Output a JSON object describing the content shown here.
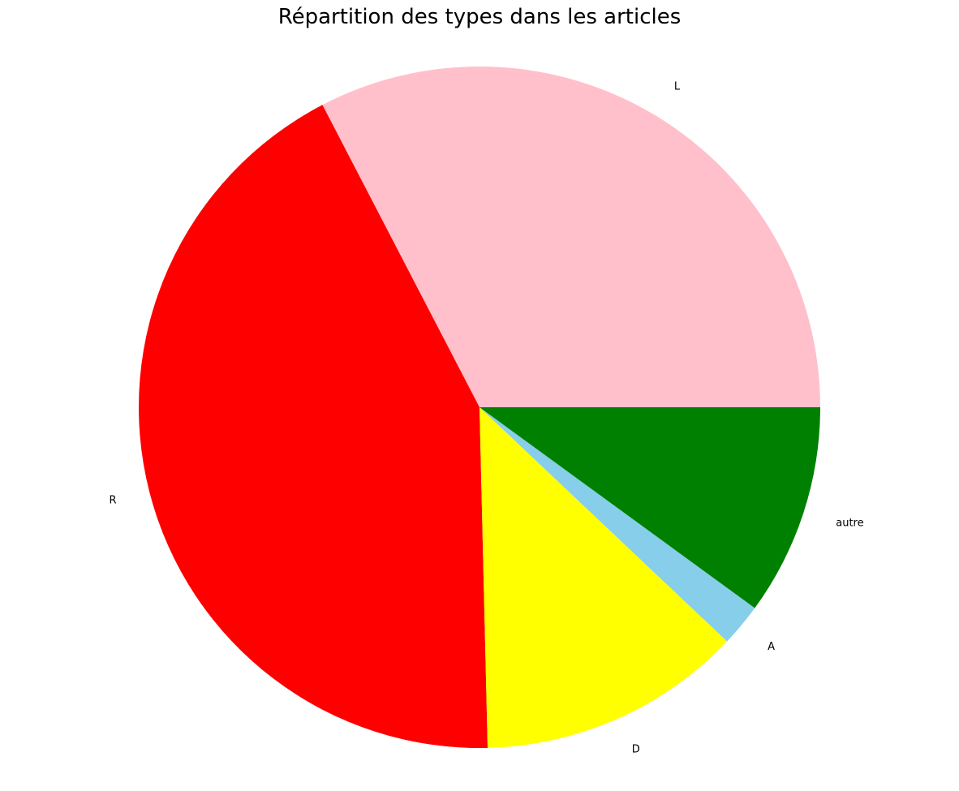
{
  "chart_data": {
    "type": "pie",
    "title": "Répartition des types dans les articles",
    "slices": [
      {
        "label": "L",
        "value": 32.2,
        "color": "#ffc0cb"
      },
      {
        "label": "R",
        "value": 42.2,
        "color": "#ff0000"
      },
      {
        "label": "D",
        "value": 12.4,
        "color": "#ffff00"
      },
      {
        "label": "A",
        "value": 2.0,
        "color": "#87ceeb"
      },
      {
        "label": "autre",
        "value": 9.9,
        "color": "#008000"
      }
    ]
  }
}
